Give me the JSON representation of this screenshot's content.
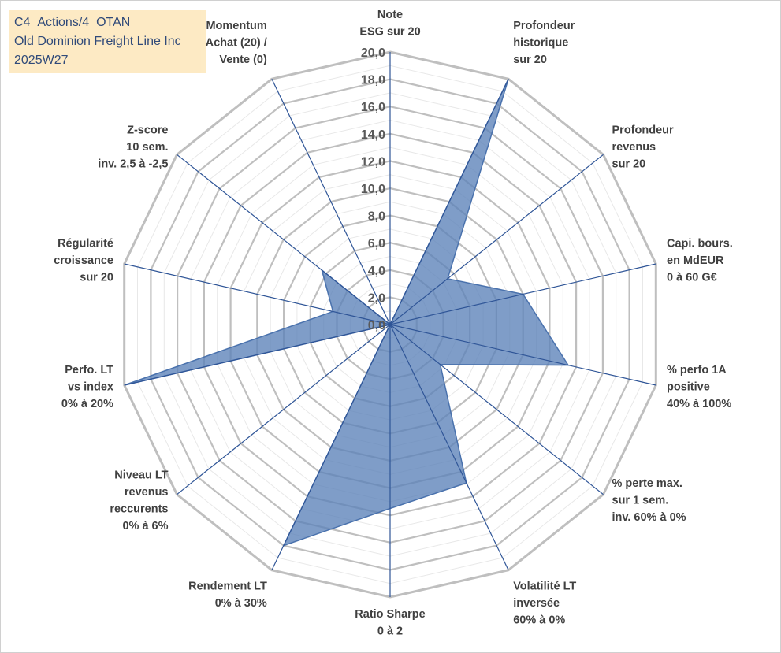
{
  "header": {
    "lines": [
      "C4_Actions/4_OTAN",
      "Old Dominion Freight Line Inc",
      "2025W27"
    ]
  },
  "colors": {
    "fill": "#5b82b8",
    "fill_opacity": 0.78,
    "series_stroke": "#4a72ad",
    "spoke": "#2f5597",
    "grid_outer": "#bfbfbf",
    "grid_inner": "#e8e8e8",
    "header_bg": "#fde9c0",
    "header_text": "#1f3b6e"
  },
  "chart_data": {
    "type": "radar",
    "title": "",
    "rmax": 20,
    "ticks": [
      "0,0",
      "2,0",
      "4,0",
      "6,0",
      "8,0",
      "10,0",
      "12,0",
      "14,0",
      "16,0",
      "18,0",
      "20,0"
    ],
    "grid": true,
    "axes": [
      [
        "Note",
        "ESG sur 20"
      ],
      [
        "Profondeur",
        "historique",
        "sur 20"
      ],
      [
        "Profondeur",
        "revenus",
        "sur 20"
      ],
      [
        "Capi. bours.",
        "en MdEUR",
        "0 à 60 G€"
      ],
      [
        "% perfo 1A",
        "positive",
        "40% à 100%"
      ],
      [
        "% perte max.",
        "sur 1 sem.",
        "inv. 60% à 0%"
      ],
      [
        "Volatilité LT",
        "inversée",
        "60% à 0%"
      ],
      [
        "Ratio Sharpe",
        "0 à 2"
      ],
      [
        "Rendement LT",
        "0% à 30%"
      ],
      [
        "Niveau LT",
        "revenus",
        "reccurents",
        "0% à 6%"
      ],
      [
        "Perfo. LT",
        "vs index",
        "0% à 20%"
      ],
      [
        "Régularité",
        "croissance",
        "sur 20"
      ],
      [
        "Z-score",
        "10 sem.",
        "inv. 2,5 à -2,5"
      ],
      [
        "Momentum",
        "Achat (20) /",
        "Vente (0)"
      ]
    ],
    "series": [
      {
        "values": [
          0,
          20,
          5.4,
          10.0,
          13.4,
          4.7,
          12.9,
          13.5,
          18.0,
          0,
          20.0,
          4.3,
          6.4,
          0
        ]
      }
    ]
  }
}
